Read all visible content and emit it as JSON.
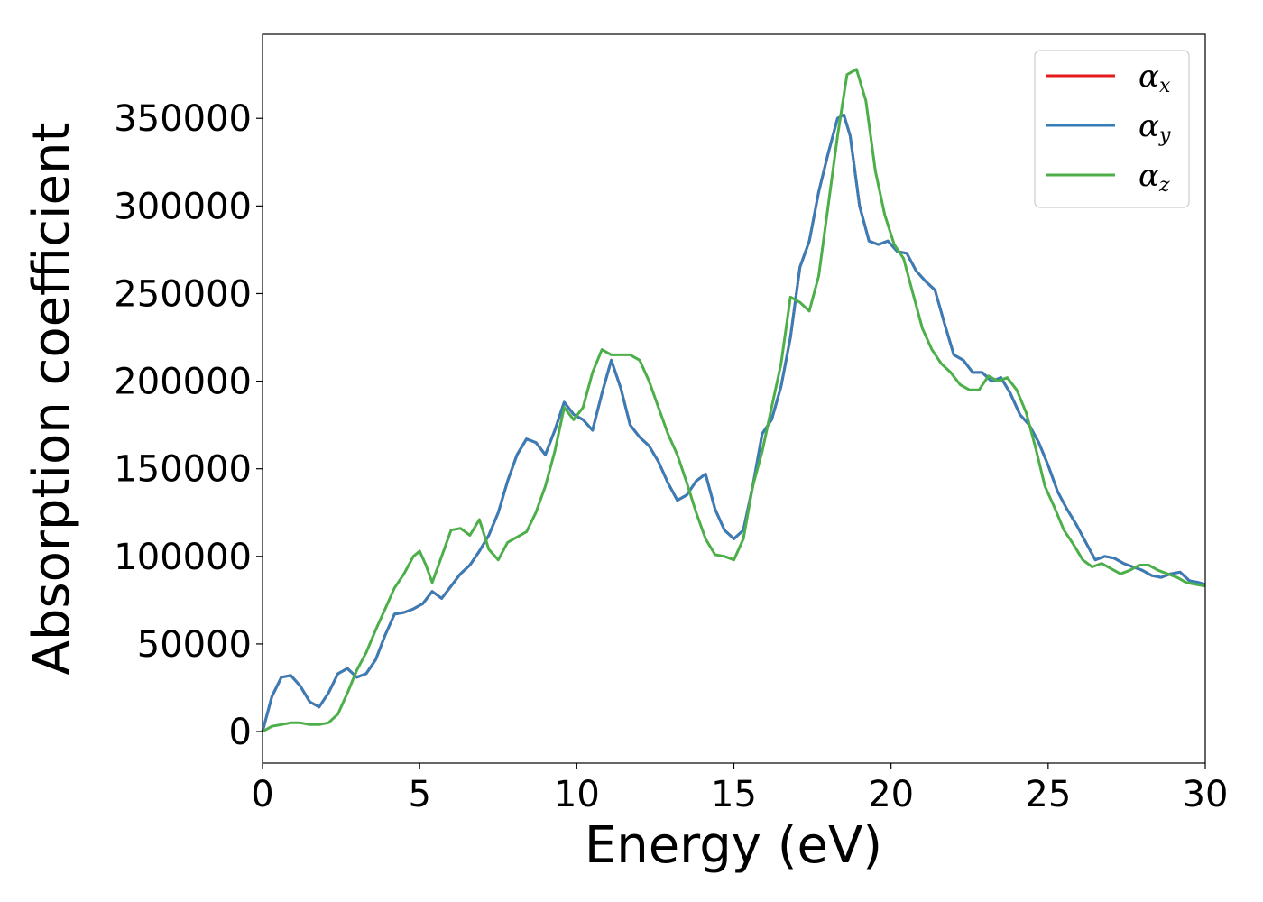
{
  "chart_data": {
    "type": "line",
    "xlabel": "Energy (eV)",
    "ylabel": "Absorption coefficient",
    "xlim": [
      0,
      30
    ],
    "ylim": [
      -18000,
      398000
    ],
    "xticks": [
      0,
      5,
      10,
      15,
      20,
      25,
      30
    ],
    "yticks": [
      0,
      50000,
      100000,
      150000,
      200000,
      250000,
      300000,
      350000
    ],
    "grid": false,
    "legend_position": "top-right",
    "series": [
      {
        "name": "α",
        "subscript": "x",
        "color": "#e41a1c",
        "x": [
          0,
          0.3,
          0.6,
          0.9,
          1.2,
          1.5,
          1.8,
          2.1,
          2.4,
          2.7,
          3.0,
          3.3,
          3.6,
          3.9,
          4.2,
          4.5,
          4.8,
          5.1,
          5.4,
          5.7,
          6.0,
          6.3,
          6.6,
          6.9,
          7.2,
          7.5,
          7.8,
          8.1,
          8.4,
          8.7,
          9.0,
          9.3,
          9.6,
          9.9,
          10.2,
          10.5,
          10.8,
          11.1,
          11.4,
          11.7,
          12.0,
          12.3,
          12.6,
          12.9,
          13.2,
          13.5,
          13.8,
          14.1,
          14.4,
          14.7,
          15.0,
          15.3,
          15.6,
          15.9,
          16.2,
          16.5,
          16.8,
          17.1,
          17.4,
          17.7,
          18.0,
          18.3,
          18.5,
          18.7,
          19.0,
          19.3,
          19.6,
          19.9,
          20.2,
          20.5,
          20.8,
          21.1,
          21.4,
          21.7,
          22.0,
          22.3,
          22.6,
          22.9,
          23.2,
          23.5,
          23.8,
          24.1,
          24.4,
          24.7,
          25.0,
          25.3,
          25.6,
          25.9,
          26.2,
          26.5,
          26.8,
          27.1,
          27.4,
          27.7,
          28.0,
          28.3,
          28.6,
          28.9,
          29.2,
          29.5,
          29.8,
          30.0
        ],
        "y": [
          0,
          20000,
          31000,
          32000,
          26000,
          17000,
          14000,
          22000,
          33000,
          36000,
          31000,
          33000,
          41000,
          55000,
          67000,
          68000,
          70000,
          73000,
          80000,
          76000,
          83000,
          90000,
          95000,
          103000,
          112000,
          125000,
          143000,
          158000,
          167000,
          165000,
          158000,
          172000,
          188000,
          181000,
          178000,
          172000,
          193000,
          212000,
          196000,
          175000,
          168000,
          163000,
          154000,
          142000,
          132000,
          135000,
          143000,
          147000,
          127000,
          115000,
          110000,
          115000,
          140000,
          170000,
          178000,
          197000,
          225000,
          265000,
          280000,
          308000,
          330000,
          350000,
          352000,
          340000,
          300000,
          280000,
          278000,
          280000,
          274000,
          273000,
          263000,
          257000,
          252000,
          233000,
          215000,
          212000,
          205000,
          205000,
          200000,
          202000,
          193000,
          181000,
          175000,
          165000,
          152000,
          137000,
          127000,
          118000,
          108000,
          98000,
          100000,
          99000,
          96000,
          94000,
          92000,
          89000,
          88000,
          90000,
          91000,
          86000,
          85000,
          84000
        ]
      },
      {
        "name": "α",
        "subscript": "y",
        "color": "#377eb8",
        "x": [
          0,
          0.3,
          0.6,
          0.9,
          1.2,
          1.5,
          1.8,
          2.1,
          2.4,
          2.7,
          3.0,
          3.3,
          3.6,
          3.9,
          4.2,
          4.5,
          4.8,
          5.1,
          5.4,
          5.7,
          6.0,
          6.3,
          6.6,
          6.9,
          7.2,
          7.5,
          7.8,
          8.1,
          8.4,
          8.7,
          9.0,
          9.3,
          9.6,
          9.9,
          10.2,
          10.5,
          10.8,
          11.1,
          11.4,
          11.7,
          12.0,
          12.3,
          12.6,
          12.9,
          13.2,
          13.5,
          13.8,
          14.1,
          14.4,
          14.7,
          15.0,
          15.3,
          15.6,
          15.9,
          16.2,
          16.5,
          16.8,
          17.1,
          17.4,
          17.7,
          18.0,
          18.3,
          18.5,
          18.7,
          19.0,
          19.3,
          19.6,
          19.9,
          20.2,
          20.5,
          20.8,
          21.1,
          21.4,
          21.7,
          22.0,
          22.3,
          22.6,
          22.9,
          23.2,
          23.5,
          23.8,
          24.1,
          24.4,
          24.7,
          25.0,
          25.3,
          25.6,
          25.9,
          26.2,
          26.5,
          26.8,
          27.1,
          27.4,
          27.7,
          28.0,
          28.3,
          28.6,
          28.9,
          29.2,
          29.5,
          29.8,
          30.0
        ],
        "y": [
          0,
          20000,
          31000,
          32000,
          26000,
          17000,
          14000,
          22000,
          33000,
          36000,
          31000,
          33000,
          41000,
          55000,
          67000,
          68000,
          70000,
          73000,
          80000,
          76000,
          83000,
          90000,
          95000,
          103000,
          112000,
          125000,
          143000,
          158000,
          167000,
          165000,
          158000,
          172000,
          188000,
          181000,
          178000,
          172000,
          193000,
          212000,
          196000,
          175000,
          168000,
          163000,
          154000,
          142000,
          132000,
          135000,
          143000,
          147000,
          127000,
          115000,
          110000,
          115000,
          140000,
          170000,
          178000,
          197000,
          225000,
          265000,
          280000,
          308000,
          330000,
          350000,
          352000,
          340000,
          300000,
          280000,
          278000,
          280000,
          274000,
          273000,
          263000,
          257000,
          252000,
          233000,
          215000,
          212000,
          205000,
          205000,
          200000,
          202000,
          193000,
          181000,
          175000,
          165000,
          152000,
          137000,
          127000,
          118000,
          108000,
          98000,
          100000,
          99000,
          96000,
          94000,
          92000,
          89000,
          88000,
          90000,
          91000,
          86000,
          85000,
          84000
        ]
      },
      {
        "name": "α",
        "subscript": "z",
        "color": "#4daf4a",
        "x": [
          0,
          0.3,
          0.6,
          0.9,
          1.2,
          1.5,
          1.8,
          2.1,
          2.4,
          2.7,
          3.0,
          3.3,
          3.6,
          3.9,
          4.2,
          4.5,
          4.8,
          5.0,
          5.2,
          5.4,
          5.7,
          6.0,
          6.3,
          6.6,
          6.9,
          7.2,
          7.5,
          7.8,
          8.1,
          8.4,
          8.7,
          9.0,
          9.3,
          9.6,
          9.9,
          10.2,
          10.5,
          10.8,
          11.1,
          11.4,
          11.7,
          12.0,
          12.3,
          12.6,
          12.9,
          13.2,
          13.5,
          13.8,
          14.1,
          14.4,
          14.7,
          15.0,
          15.3,
          15.6,
          15.9,
          16.2,
          16.5,
          16.8,
          17.1,
          17.4,
          17.7,
          18.0,
          18.3,
          18.6,
          18.9,
          19.2,
          19.5,
          19.8,
          20.1,
          20.4,
          20.7,
          21.0,
          21.3,
          21.6,
          21.9,
          22.2,
          22.5,
          22.8,
          23.1,
          23.4,
          23.7,
          24.0,
          24.3,
          24.6,
          24.9,
          25.2,
          25.5,
          25.8,
          26.1,
          26.4,
          26.7,
          27.0,
          27.3,
          27.6,
          27.9,
          28.2,
          28.5,
          28.8,
          29.1,
          29.4,
          29.7,
          30.0
        ],
        "y": [
          0,
          3000,
          4000,
          5000,
          5000,
          4000,
          4000,
          5000,
          10000,
          22000,
          35000,
          45000,
          58000,
          70000,
          82000,
          90000,
          100000,
          103000,
          95000,
          85000,
          100000,
          115000,
          116000,
          112000,
          121000,
          104000,
          98000,
          108000,
          111000,
          114000,
          125000,
          140000,
          160000,
          185000,
          178000,
          185000,
          205000,
          218000,
          215000,
          215000,
          215000,
          212000,
          200000,
          185000,
          170000,
          158000,
          142000,
          125000,
          110000,
          101000,
          100000,
          98000,
          110000,
          140000,
          160000,
          185000,
          210000,
          248000,
          245000,
          240000,
          260000,
          300000,
          340000,
          375000,
          378000,
          360000,
          320000,
          295000,
          278000,
          270000,
          250000,
          230000,
          218000,
          210000,
          205000,
          198000,
          195000,
          195000,
          203000,
          200000,
          202000,
          195000,
          182000,
          162000,
          140000,
          128000,
          115000,
          107000,
          98000,
          94000,
          96000,
          93000,
          90000,
          92000,
          95000,
          95000,
          92000,
          90000,
          88000,
          85000,
          84000,
          83000
        ]
      }
    ]
  }
}
